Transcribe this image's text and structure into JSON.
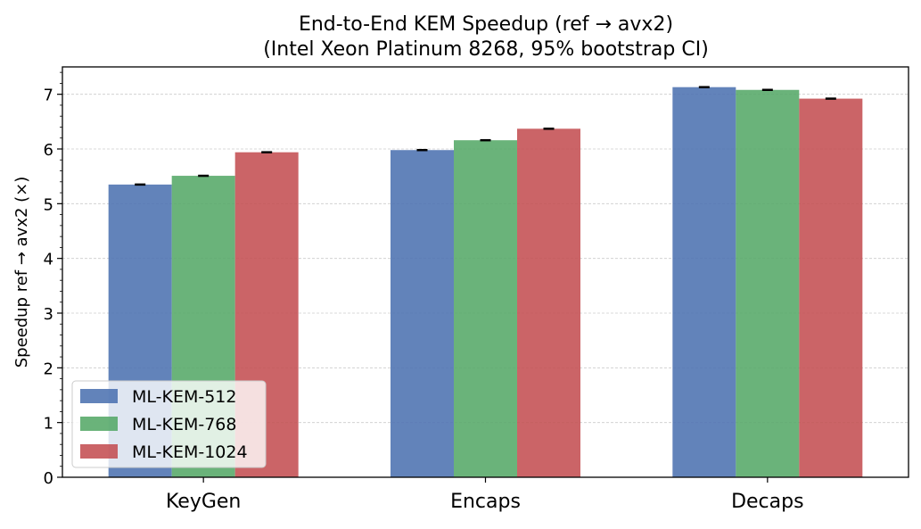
{
  "chart_data": {
    "type": "bar",
    "title": "End-to-End KEM Speedup (ref → avx2)",
    "subtitle": "(Intel Xeon Platinum 8268, 95% bootstrap CI)",
    "xlabel": "",
    "ylabel": "Speedup ref → avx2 (×)",
    "ylim": [
      0,
      7.5
    ],
    "yticks": [
      "0",
      "1",
      "2",
      "3",
      "4",
      "5",
      "6",
      "7"
    ],
    "grid": true,
    "legend_position": "bottom-left",
    "categories": [
      "KeyGen",
      "Encaps",
      "Decaps"
    ],
    "series": [
      {
        "name": "ML-KEM-512",
        "color": "#4c72b0",
        "values": [
          5.35,
          5.98,
          7.13
        ]
      },
      {
        "name": "ML-KEM-768",
        "color": "#55a868",
        "values": [
          5.51,
          6.16,
          7.08
        ]
      },
      {
        "name": "ML-KEM-1024",
        "color": "#c44e52",
        "values": [
          5.94,
          6.37,
          6.92
        ]
      }
    ]
  }
}
